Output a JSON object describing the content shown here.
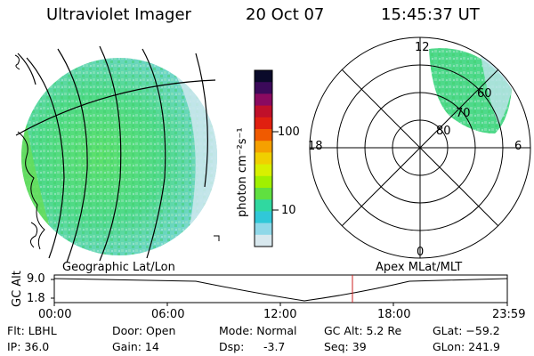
{
  "header": {
    "instrument": "Ultraviolet Imager",
    "date": "20 Oct 07",
    "time": "15:45:37 UT"
  },
  "colorbar": {
    "unit_label": "photon cm⁻²s⁻¹",
    "ticks": [
      "100",
      "10"
    ],
    "colors": [
      "#0a0a2a",
      "#3b0a5a",
      "#8a0a60",
      "#c0102a",
      "#e02010",
      "#f05a00",
      "#f5a000",
      "#f0d000",
      "#d8f000",
      "#a0f000",
      "#60e040",
      "#30d8a0",
      "#30c8d8",
      "#90d8e8",
      "#d8e8ee"
    ]
  },
  "polar_plot": {
    "lat_labels": [
      "80",
      "70",
      "60"
    ],
    "mlt_labels": [
      "12",
      "18",
      "6",
      "0"
    ]
  },
  "timeline": {
    "left_caption": "Geographic Lat/Lon",
    "right_caption": "Apex MLat/MLT",
    "axis_title": "GC Alt",
    "y_ticks": [
      "9.0",
      "1.8"
    ],
    "x_ticks": [
      "00:00",
      "06:00",
      "12:00",
      "18:00",
      "23:59"
    ]
  },
  "status": {
    "filter": "Flt: LBHL",
    "ip": "IP: 36.0",
    "door": "Door: Open",
    "gain": "Gain: 14",
    "mode": "Mode: Normal",
    "dsp_label": "Dsp:",
    "dsp_value": "-3.7",
    "gc_alt": "GC Alt: 5.2 Re",
    "seq": "Seq: 39",
    "glat": "GLat: −59.2",
    "glon": "GLon: 241.9"
  }
}
